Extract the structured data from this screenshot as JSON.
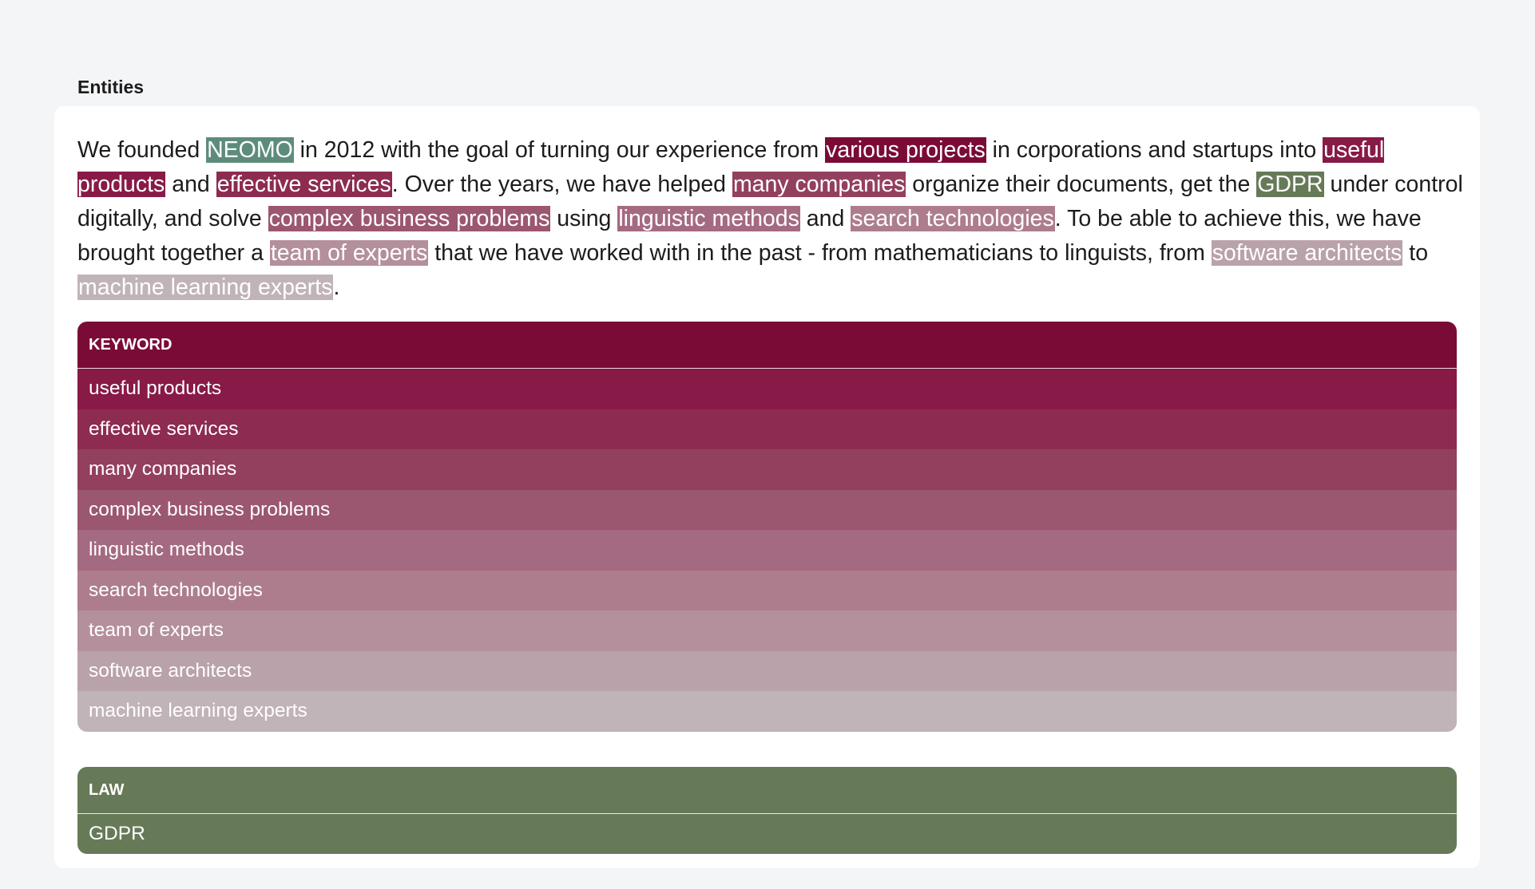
{
  "section_title": "Entities",
  "colors": {
    "neomo": "#5e8c7c",
    "law": "#677a58",
    "keyword_scale": [
      "#7a0b37",
      "#881a47",
      "#8d2b50",
      "#93405f",
      "#9b5670",
      "#a46a81",
      "#ad7d8e",
      "#b48f9c",
      "#b9a2aa",
      "#c0b4b9"
    ]
  },
  "paragraph": [
    {
      "t": "We founded "
    },
    {
      "t": "NEOMO",
      "c": "#5e8c7c"
    },
    {
      "t": " in 2012 with the goal of turning our experience from "
    },
    {
      "t": "various projects",
      "c": "#7a0b37"
    },
    {
      "t": " in corporations and startups into "
    },
    {
      "t": "useful products",
      "c": "#881a47"
    },
    {
      "t": " and "
    },
    {
      "t": "effective services",
      "c": "#8d2b50"
    },
    {
      "t": ". Over the years, we have helped "
    },
    {
      "t": "many companies",
      "c": "#93405f"
    },
    {
      "t": " organize their documents, get the "
    },
    {
      "t": "GDPR",
      "c": "#677a58"
    },
    {
      "t": " under control digitally, and solve "
    },
    {
      "t": "complex business problems",
      "c": "#9b5670"
    },
    {
      "t": " using "
    },
    {
      "t": "linguistic methods",
      "c": "#a46a81"
    },
    {
      "t": " and "
    },
    {
      "t": "search technologies",
      "c": "#ad7d8e"
    },
    {
      "t": ". To be able to achieve this, we have brought together a "
    },
    {
      "t": "team of experts",
      "c": "#b48f9c"
    },
    {
      "t": " that we have worked with in the past - from mathematicians to linguists, from "
    },
    {
      "t": "software architects",
      "c": "#b9a2aa"
    },
    {
      "t": " to "
    },
    {
      "t": "machine learning experts",
      "c": "#c0b4b9"
    },
    {
      "t": "."
    }
  ],
  "tables": [
    {
      "header": "KEYWORD",
      "header_color": "#7a0b37",
      "rows": [
        {
          "label": "useful products",
          "color": "#881a47"
        },
        {
          "label": "effective services",
          "color": "#8d2b50"
        },
        {
          "label": "many companies",
          "color": "#93405f"
        },
        {
          "label": "complex business problems",
          "color": "#9b5670"
        },
        {
          "label": "linguistic methods",
          "color": "#a46a81"
        },
        {
          "label": "search technologies",
          "color": "#ad7d8e"
        },
        {
          "label": "team of experts",
          "color": "#b48f9c"
        },
        {
          "label": "software architects",
          "color": "#b9a2aa"
        },
        {
          "label": "machine learning experts",
          "color": "#c0b4b9"
        }
      ]
    },
    {
      "header": "LAW",
      "header_color": "#677a58",
      "rows": [
        {
          "label": "GDPR",
          "color": "#677a58"
        }
      ]
    }
  ]
}
